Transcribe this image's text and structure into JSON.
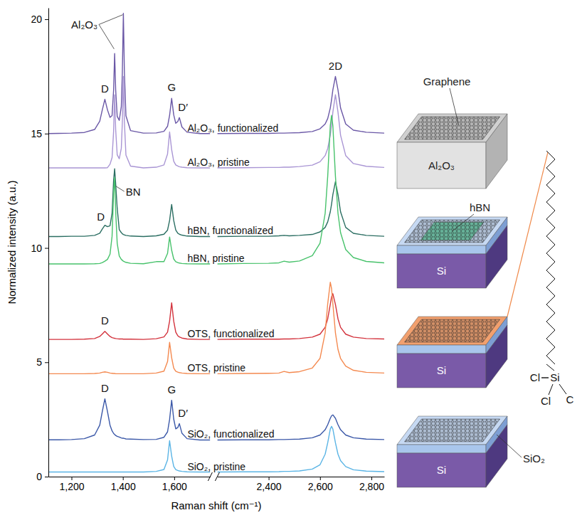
{
  "chart_data": [
    {
      "type": "line",
      "x_label": "Raman shift (cm⁻¹)",
      "y_label": "Normalized intensity (a.u.)",
      "x": [
        1110,
        1150,
        1200,
        1250,
        1290,
        1310,
        1320,
        1330,
        1340,
        1350,
        1358,
        1364,
        1368,
        1372,
        1378,
        1386,
        1394,
        1398,
        1402,
        1406,
        1412,
        1430,
        1480,
        1530,
        1560,
        1574,
        1582,
        1590,
        1598,
        1606,
        1614,
        1620,
        1630,
        1650,
        1700,
        1740
      ],
      "xlim": [
        1110,
        1740
      ],
      "xticks": [
        {
          "value": 1200,
          "label": "1,200"
        },
        {
          "value": 1400,
          "label": "1,400"
        },
        {
          "value": 1600,
          "label": "1,600"
        }
      ],
      "ylim": [
        0,
        20.5
      ],
      "yticks": [
        0,
        5,
        10,
        15,
        20
      ],
      "series": [
        {
          "name": "Al₂O₃, functionalized",
          "color": "#6a57a6",
          "values": [
            15.0,
            15.01,
            15.02,
            15.05,
            15.18,
            15.54,
            16.04,
            16.5,
            16.04,
            15.71,
            15.79,
            16.9,
            18.5,
            16.92,
            15.75,
            15.58,
            16.19,
            17.67,
            20.26,
            17.66,
            15.78,
            15.13,
            15.02,
            15.03,
            15.1,
            15.32,
            15.8,
            16.54,
            15.82,
            15.45,
            15.53,
            15.7,
            15.29,
            15.06,
            15.0,
            15.0
          ]
        },
        {
          "name": "Al₂O₃, pristine",
          "color": "#a995d4",
          "values": [
            13.5,
            13.5,
            13.5,
            13.5,
            13.5,
            13.5,
            13.5,
            13.5,
            13.51,
            13.66,
            13.95,
            15.1,
            16.7,
            15.18,
            14.07,
            13.9,
            14.36,
            15.5,
            17.5,
            15.5,
            14.06,
            13.58,
            13.5,
            13.53,
            13.63,
            14.11,
            15.07,
            14.3,
            13.79,
            13.63,
            13.58,
            13.55,
            13.53,
            13.51,
            13.5,
            13.5
          ]
        },
        {
          "name": "hBN, functionalized",
          "color": "#2b6e62",
          "values": [
            10.5,
            10.5,
            10.51,
            10.51,
            10.55,
            10.64,
            10.83,
            10.99,
            10.93,
            10.97,
            11.52,
            12.96,
            13.46,
            12.81,
            11.73,
            10.8,
            10.67,
            10.62,
            10.59,
            10.57,
            10.55,
            10.52,
            10.5,
            10.53,
            10.6,
            10.78,
            11.2,
            11.9,
            11.2,
            10.78,
            10.64,
            10.6,
            10.56,
            10.52,
            10.5,
            10.5
          ]
        },
        {
          "name": "hBN, pristine",
          "color": "#47c26b",
          "values": [
            9.3,
            9.3,
            9.3,
            9.3,
            9.31,
            9.32,
            9.36,
            9.42,
            9.5,
            9.73,
            10.51,
            12.42,
            13.08,
            11.6,
            10.2,
            9.65,
            9.5,
            9.46,
            9.42,
            9.4,
            9.37,
            9.33,
            9.31,
            9.4,
            9.4,
            9.76,
            10.48,
            9.9,
            9.52,
            9.4,
            9.36,
            9.34,
            9.32,
            9.31,
            9.3,
            9.3
          ]
        },
        {
          "name": "OTS, functionalized",
          "color": "#d3323c",
          "values": [
            6.0,
            6.0,
            6.0,
            6.01,
            6.04,
            6.13,
            6.24,
            6.35,
            6.24,
            6.13,
            6.08,
            6.06,
            6.05,
            6.04,
            6.03,
            6.02,
            6.02,
            6.02,
            6.01,
            6.01,
            6.01,
            6.01,
            6.0,
            6.03,
            6.11,
            6.32,
            6.8,
            7.6,
            6.8,
            6.32,
            6.16,
            6.11,
            6.06,
            6.02,
            6.0,
            6.0
          ]
        },
        {
          "name": "OTS, pristine",
          "color": "#f4894f",
          "values": [
            4.5,
            4.5,
            4.5,
            4.5,
            4.51,
            4.53,
            4.56,
            4.58,
            4.56,
            4.53,
            4.52,
            4.51,
            4.51,
            4.5,
            4.5,
            4.5,
            4.5,
            4.5,
            4.5,
            4.5,
            4.5,
            4.5,
            4.5,
            4.53,
            4.61,
            5.03,
            5.87,
            5.2,
            4.75,
            4.61,
            4.57,
            4.55,
            4.53,
            4.51,
            4.5,
            4.5
          ]
        },
        {
          "name": "SiO₂, functionalized",
          "color": "#3b58a8",
          "values": [
            1.61,
            1.61,
            1.62,
            1.66,
            1.82,
            2.25,
            2.85,
            3.4,
            2.85,
            2.25,
            2.0,
            1.89,
            1.84,
            1.8,
            1.76,
            1.73,
            1.69,
            1.68,
            1.68,
            1.67,
            1.65,
            1.64,
            1.62,
            1.63,
            1.72,
            1.96,
            2.5,
            3.34,
            2.52,
            2.09,
            2.15,
            2.32,
            1.9,
            1.66,
            1.6,
            1.6
          ]
        },
        {
          "name": "SiO₂, pristine",
          "color": "#5ab4e5",
          "values": [
            0.2,
            0.2,
            0.2,
            0.2,
            0.2,
            0.2,
            0.2,
            0.2,
            0.2,
            0.2,
            0.2,
            0.2,
            0.2,
            0.2,
            0.2,
            0.2,
            0.2,
            0.2,
            0.2,
            0.2,
            0.2,
            0.2,
            0.2,
            0.23,
            0.31,
            0.73,
            1.57,
            0.9,
            0.45,
            0.31,
            0.27,
            0.25,
            0.23,
            0.21,
            0.2,
            0.2
          ]
        }
      ],
      "annotations": [
        {
          "text": "Al₂O₃",
          "x": 1250,
          "y": 19.6,
          "points": [
            [
              1366,
              18.7
            ],
            [
              1400,
              20.2
            ]
          ]
        },
        {
          "text": "D",
          "x": 1330,
          "y": 16.8
        },
        {
          "text": "G",
          "x": 1590,
          "y": 16.85
        },
        {
          "text": "D′",
          "x": 1634,
          "y": 16.0
        },
        {
          "text": "BN",
          "x": 1440,
          "y": 12.3,
          "points": [
            [
              1373,
              12.7
            ]
          ]
        },
        {
          "text": "D",
          "x": 1314,
          "y": 11.2
        },
        {
          "text": "D",
          "x": 1330,
          "y": 6.65
        },
        {
          "text": "D",
          "x": 1330,
          "y": 3.7
        },
        {
          "text": "G",
          "x": 1590,
          "y": 3.65
        },
        {
          "text": "D′",
          "x": 1634,
          "y": 2.6
        }
      ]
    },
    {
      "type": "line",
      "x": [
        2200,
        2300,
        2400,
        2440,
        2460,
        2480,
        2520,
        2570,
        2600,
        2620,
        2630,
        2640,
        2645,
        2650,
        2660,
        2670,
        2680,
        2700,
        2730,
        2780,
        2850
      ],
      "xlim": [
        2200,
        2850
      ],
      "xticks": [
        {
          "value": 2400,
          "label": "2,400"
        },
        {
          "value": 2600,
          "label": "2,600"
        },
        {
          "value": 2800,
          "label": "2,800"
        }
      ],
      "ylim": [
        0,
        20.5
      ],
      "tick_labels": "x",
      "series": [
        {
          "color": "#6a57a6",
          "values": [
            15.0,
            15.01,
            15.01,
            15.02,
            15.02,
            15.03,
            15.04,
            15.09,
            15.21,
            15.42,
            15.66,
            16.12,
            16.48,
            16.91,
            17.5,
            16.91,
            16.12,
            15.42,
            15.15,
            15.06,
            15.02
          ]
        },
        {
          "color": "#a995d4",
          "values": [
            13.5,
            13.51,
            13.52,
            13.52,
            13.53,
            13.53,
            13.56,
            13.62,
            13.77,
            14.04,
            14.35,
            14.93,
            15.39,
            15.94,
            16.7,
            15.94,
            14.93,
            14.04,
            13.69,
            13.57,
            13.52
          ]
        },
        {
          "color": "#2b6e62",
          "values": [
            10.5,
            10.51,
            10.51,
            10.53,
            10.55,
            10.53,
            10.55,
            10.59,
            10.7,
            10.9,
            11.14,
            11.58,
            11.92,
            12.33,
            12.9,
            12.33,
            11.58,
            10.9,
            10.64,
            10.55,
            10.51
          ]
        },
        {
          "color": "#47c26b",
          "values": [
            9.3,
            9.32,
            9.33,
            9.35,
            9.42,
            9.38,
            9.43,
            9.66,
            10.21,
            11.51,
            13.14,
            15.35,
            15.8,
            15.35,
            13.14,
            11.51,
            10.67,
            9.93,
            9.58,
            9.41,
            9.35
          ]
        },
        {
          "color": "#d3323c",
          "values": [
            6.0,
            6.01,
            6.01,
            6.01,
            6.02,
            6.02,
            6.04,
            6.1,
            6.23,
            6.53,
            6.9,
            7.53,
            7.86,
            8.0,
            7.53,
            6.9,
            6.53,
            6.23,
            6.1,
            6.04,
            6.02
          ]
        },
        {
          "color": "#f4894f",
          "values": [
            4.5,
            4.51,
            4.52,
            4.53,
            4.6,
            4.55,
            4.59,
            4.75,
            5.17,
            6.29,
            7.56,
            8.5,
            8.22,
            7.56,
            6.29,
            5.56,
            5.17,
            4.83,
            4.65,
            4.56,
            4.53
          ]
        },
        {
          "color": "#3b58a8",
          "values": [
            1.6,
            1.61,
            1.61,
            1.62,
            1.62,
            1.63,
            1.64,
            1.7,
            1.82,
            2.05,
            2.27,
            2.55,
            2.66,
            2.7,
            2.55,
            2.27,
            2.05,
            1.82,
            1.7,
            1.64,
            1.62
          ]
        },
        {
          "color": "#5ab4e5",
          "values": [
            0.2,
            0.21,
            0.21,
            0.22,
            0.23,
            0.23,
            0.25,
            0.33,
            0.52,
            0.98,
            1.48,
            2.08,
            2.2,
            2.08,
            1.48,
            0.98,
            0.7,
            0.44,
            0.3,
            0.24,
            0.22
          ]
        }
      ],
      "annotations": [
        {
          "text": "2D",
          "x": 2660,
          "y": 17.8
        }
      ]
    }
  ],
  "diagram": {
    "label": "Graphene",
    "stacks": [
      {
        "substrate": "Al₂O₃"
      },
      {
        "substrate": "Si",
        "top": "hBN"
      },
      {
        "substrate": "Si"
      },
      {
        "substrate": "Si",
        "oxide": "SiO₂"
      }
    ],
    "molecule": [
      "Cl",
      "Si",
      "Cl",
      "C"
    ]
  }
}
